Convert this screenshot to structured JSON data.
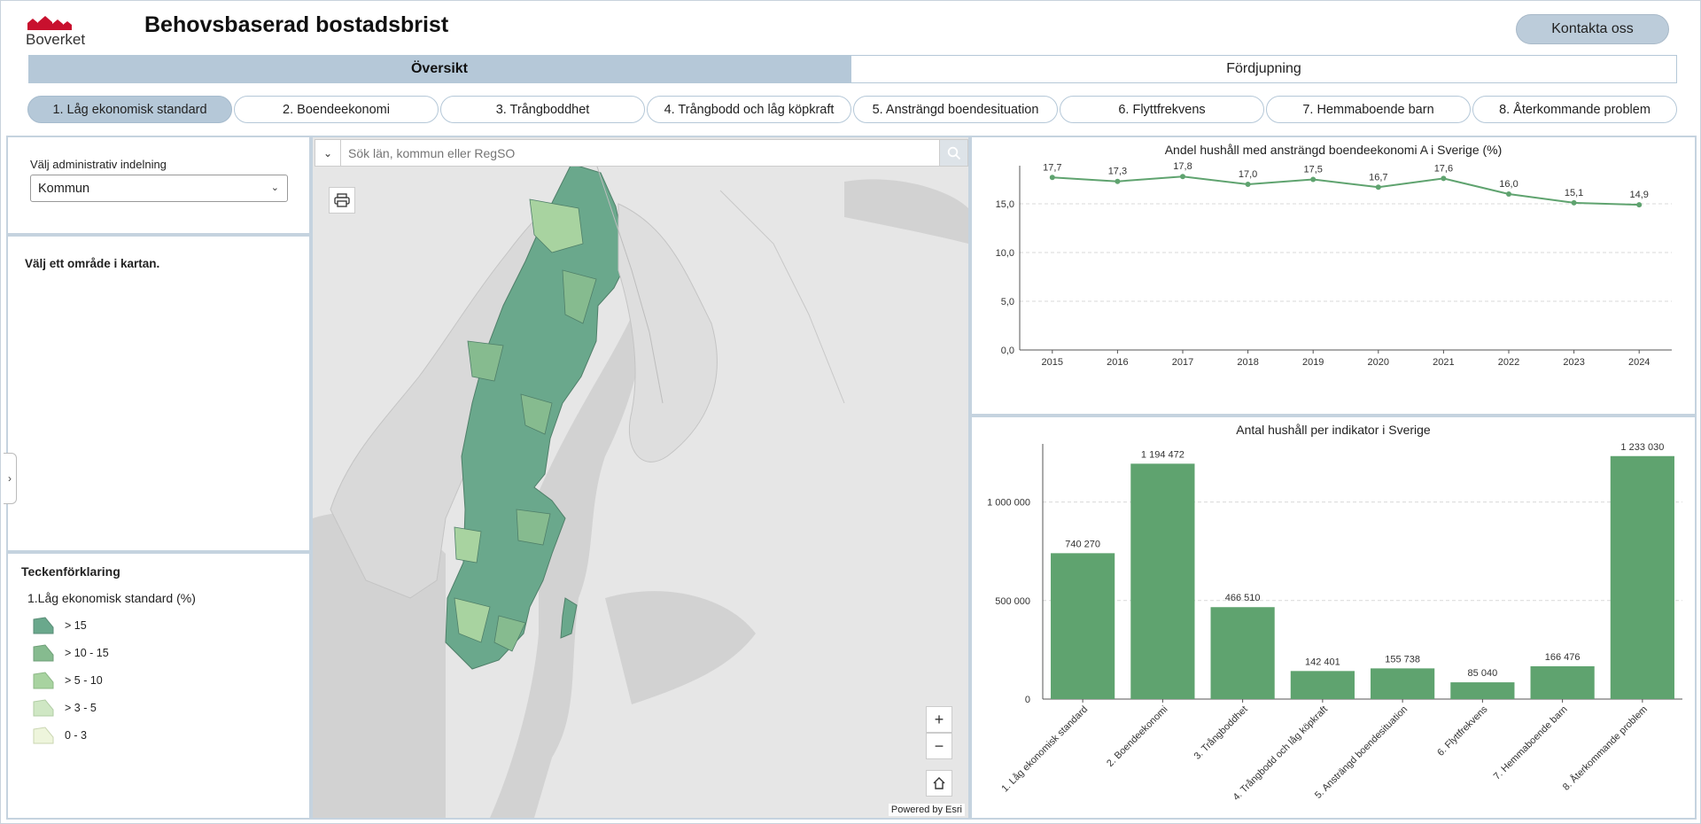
{
  "header": {
    "logo_text": "Boverket",
    "title": "Behovsbaserad bostadsbrist",
    "contact_label": "Kontakta oss"
  },
  "main_tabs": [
    {
      "label": "Översikt",
      "active": true
    },
    {
      "label": "Fördjupning",
      "active": false
    }
  ],
  "indicators": [
    {
      "label": "1. Låg ekonomisk standard",
      "active": true
    },
    {
      "label": "2. Boendeekonomi",
      "active": false
    },
    {
      "label": "3. Trångboddhet",
      "active": false
    },
    {
      "label": "4. Trångbodd och låg köpkraft",
      "active": false
    },
    {
      "label": "5. Ansträngd boendesituation",
      "active": false
    },
    {
      "label": "6. Flyttfrekvens",
      "active": false
    },
    {
      "label": "7. Hemmaboende barn",
      "active": false
    },
    {
      "label": "8. Återkommande problem",
      "active": false
    }
  ],
  "admin": {
    "label": "Välj administrativ indelning",
    "selected": "Kommun"
  },
  "info": {
    "text": "Välj ett område i kartan."
  },
  "legend": {
    "title": "Teckenförklaring",
    "subtitle": "1.Låg ekonomisk standard (%)",
    "items": [
      {
        "label": "> 15",
        "color": "#6aa88c"
      },
      {
        "label": "> 10 - 15",
        "color": "#86bb8f"
      },
      {
        "label": "> 5 - 10",
        "color": "#a8d3a0"
      },
      {
        "label": "> 3 - 5",
        "color": "#cfe7c4"
      },
      {
        "label": "0 - 3",
        "color": "#eef5dc"
      }
    ]
  },
  "map": {
    "search_placeholder": "Sök län, kommun eller RegSO",
    "powered_by": "Powered by Esri",
    "zoom_in": "+",
    "zoom_out": "−"
  },
  "colors": {
    "accent": "#b5c8d8",
    "chart_green": "#5fa36f",
    "map_land": "#e4e4e4",
    "map_water": "#cfcfcf"
  },
  "chart_data": [
    {
      "type": "line",
      "title": "Andel hushåll med ansträngd boendeekonomi A i Sverige (%)",
      "x": [
        "2015",
        "2016",
        "2017",
        "2018",
        "2019",
        "2020",
        "2021",
        "2022",
        "2023",
        "2024"
      ],
      "values": [
        17.7,
        17.3,
        17.8,
        17.0,
        17.5,
        16.7,
        17.6,
        16.0,
        15.1,
        14.9
      ],
      "value_labels": [
        "17,7",
        "17,3",
        "17,8",
        "17,0",
        "17,5",
        "16,7",
        "17,6",
        "16,0",
        "15,1",
        "14,9"
      ],
      "yticks": [
        "0,0",
        "5,0",
        "10,0",
        "15,0"
      ],
      "ytick_values": [
        0,
        5,
        10,
        15
      ],
      "ylim": [
        0,
        18
      ],
      "grid": true
    },
    {
      "type": "bar",
      "title": "Antal hushåll per indikator i Sverige",
      "categories": [
        "1. Låg ekonomisk standard",
        "2. Boendeekonomi",
        "3. Trångboddhet",
        "4. Trångbodd och låg köpkraft",
        "5. Ansträngd boendesituation",
        "6. Flyttfrekvens",
        "7. Hemmaboende barn",
        "8. Återkommande problem"
      ],
      "values": [
        740270,
        1194472,
        466510,
        142401,
        155738,
        85040,
        166476,
        1233030
      ],
      "value_labels": [
        "740 270",
        "1 194 472",
        "466 510",
        "142 401",
        "155 738",
        "85 040",
        "166 476",
        "1 233 030"
      ],
      "yticks": [
        "0",
        "500 000",
        "1 000 000"
      ],
      "ytick_values": [
        0,
        500000,
        1000000
      ],
      "ylim": [
        0,
        1250000
      ],
      "grid": true
    }
  ]
}
